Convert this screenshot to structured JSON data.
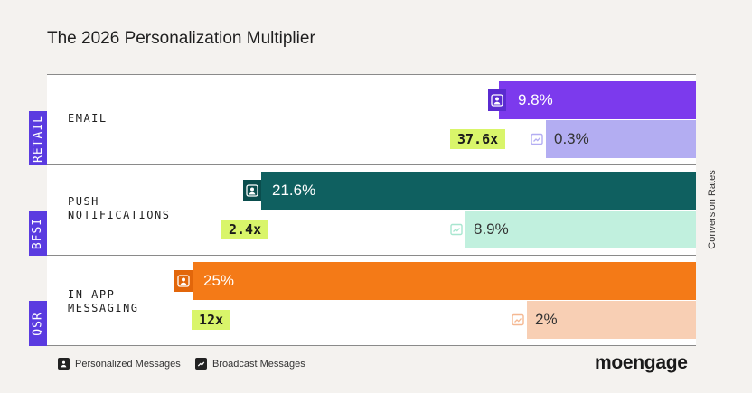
{
  "title": "The 2026 Personalization Multiplier",
  "axis_label": "Conversion Rates",
  "legend": {
    "personalized": "Personalized Messages",
    "broadcast": "Broadcast Messages"
  },
  "brand": "moengage",
  "colors": {
    "retail_personalized": "#7c3aed",
    "retail_broadcast": "#b3adf2",
    "bfsi_personalized": "#0f6060",
    "bfsi_broadcast": "#c1f0de",
    "qsr_personalized": "#f47a17",
    "qsr_broadcast": "#f8cfb4",
    "multiplier": "#d9f56a",
    "sector_tag": "#5a3be0"
  },
  "icons": {
    "personalized": "person-icon",
    "broadcast": "broadcast-icon"
  },
  "chart_data": {
    "type": "bar",
    "orientation": "horizontal",
    "title": "The 2026 Personalization Multiplier",
    "ylabel": "Conversion Rates",
    "legend_position": "bottom-left",
    "rows": [
      {
        "sector": "RETAIL",
        "channel_lines": [
          "EMAIL"
        ],
        "personalized": 9.8,
        "personalized_label": "9.8%",
        "broadcast": 0.3,
        "broadcast_label": "0.3%",
        "multiplier": "37.6x"
      },
      {
        "sector": "BFSI",
        "channel_lines": [
          "PUSH",
          "NOTIFICATIONS"
        ],
        "personalized": 21.6,
        "personalized_label": "21.6%",
        "broadcast": 8.9,
        "broadcast_label": "8.9%",
        "multiplier": "2.4x"
      },
      {
        "sector": "QSR",
        "channel_lines": [
          "IN-APP",
          "MESSAGING"
        ],
        "personalized": 25,
        "personalized_label": "25%",
        "broadcast": 2,
        "broadcast_label": "2%",
        "multiplier": "12x"
      }
    ]
  }
}
